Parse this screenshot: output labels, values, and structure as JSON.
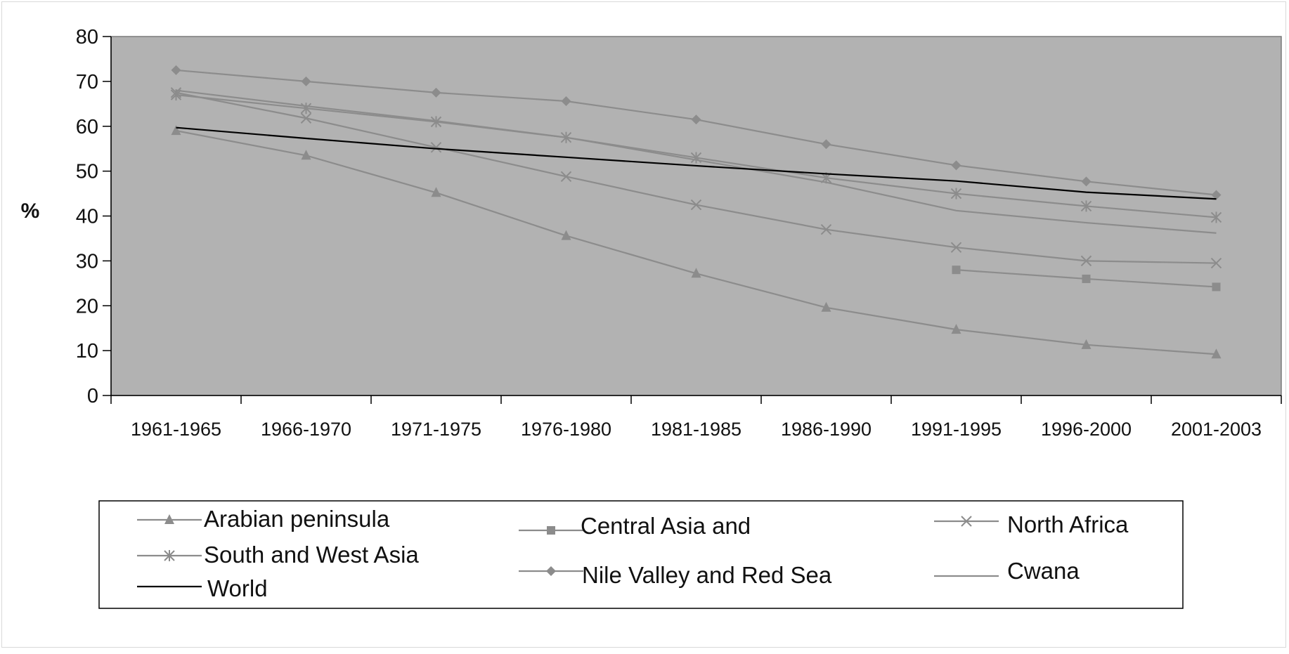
{
  "chart_data": {
    "type": "line",
    "title": "",
    "xlabel": "",
    "ylabel": "%",
    "ylim": [
      0,
      80
    ],
    "yticks": [
      0,
      10,
      20,
      30,
      40,
      50,
      60,
      70,
      80
    ],
    "grid": false,
    "legend_position": "bottom",
    "categories": [
      "1961-1965",
      "1966-1970",
      "1971-1975",
      "1976-1980",
      "1981-1985",
      "1986-1990",
      "1991-1995",
      "1996-2000",
      "2001-2003"
    ],
    "series": [
      {
        "name": "Arabian peninsula",
        "marker": "triangle",
        "color": "#8c8c8c",
        "values": [
          59,
          53.5,
          45.2,
          35.6,
          27.2,
          19.6,
          14.7,
          11.3,
          9.2
        ]
      },
      {
        "name": "Central Asia and",
        "marker": "square",
        "color": "#8c8c8c",
        "values": [
          null,
          null,
          null,
          null,
          null,
          null,
          28,
          26,
          24.2
        ]
      },
      {
        "name": "North Africa",
        "marker": "x",
        "color": "#8c8c8c",
        "values": [
          67.5,
          61.8,
          55.3,
          48.8,
          42.5,
          37,
          33,
          30,
          29.5
        ]
      },
      {
        "name": "South and West Asia",
        "marker": "asterisk",
        "color": "#8c8c8c",
        "values": [
          67,
          64,
          61,
          57.5,
          53,
          48.5,
          45,
          42.2,
          39.7
        ]
      },
      {
        "name": "Nile Valley and Red Sea",
        "marker": "diamond",
        "color": "#8c8c8c",
        "values": [
          72.5,
          70,
          67.5,
          65.6,
          61.5,
          56,
          51.3,
          47.7,
          44.7
        ]
      },
      {
        "name": "Cwana",
        "marker": "none",
        "color": "#8c8c8c",
        "values": [
          68,
          64.5,
          61.2,
          57.5,
          52.5,
          47.5,
          41.2,
          38.5,
          36.2
        ]
      },
      {
        "name": "World",
        "marker": "none",
        "color": "#000000",
        "values": [
          59.7,
          57.3,
          55,
          53.1,
          51.2,
          49.4,
          47.8,
          45.3,
          43.8
        ]
      }
    ],
    "legend_rows": [
      [
        "Arabian peninsula",
        "Central Asia and",
        "North Africa"
      ],
      [
        "South and West Asia",
        "Nile Valley and Red Sea",
        "Cwana"
      ],
      [
        "World"
      ]
    ],
    "plot_background": "#b2b2b2"
  }
}
